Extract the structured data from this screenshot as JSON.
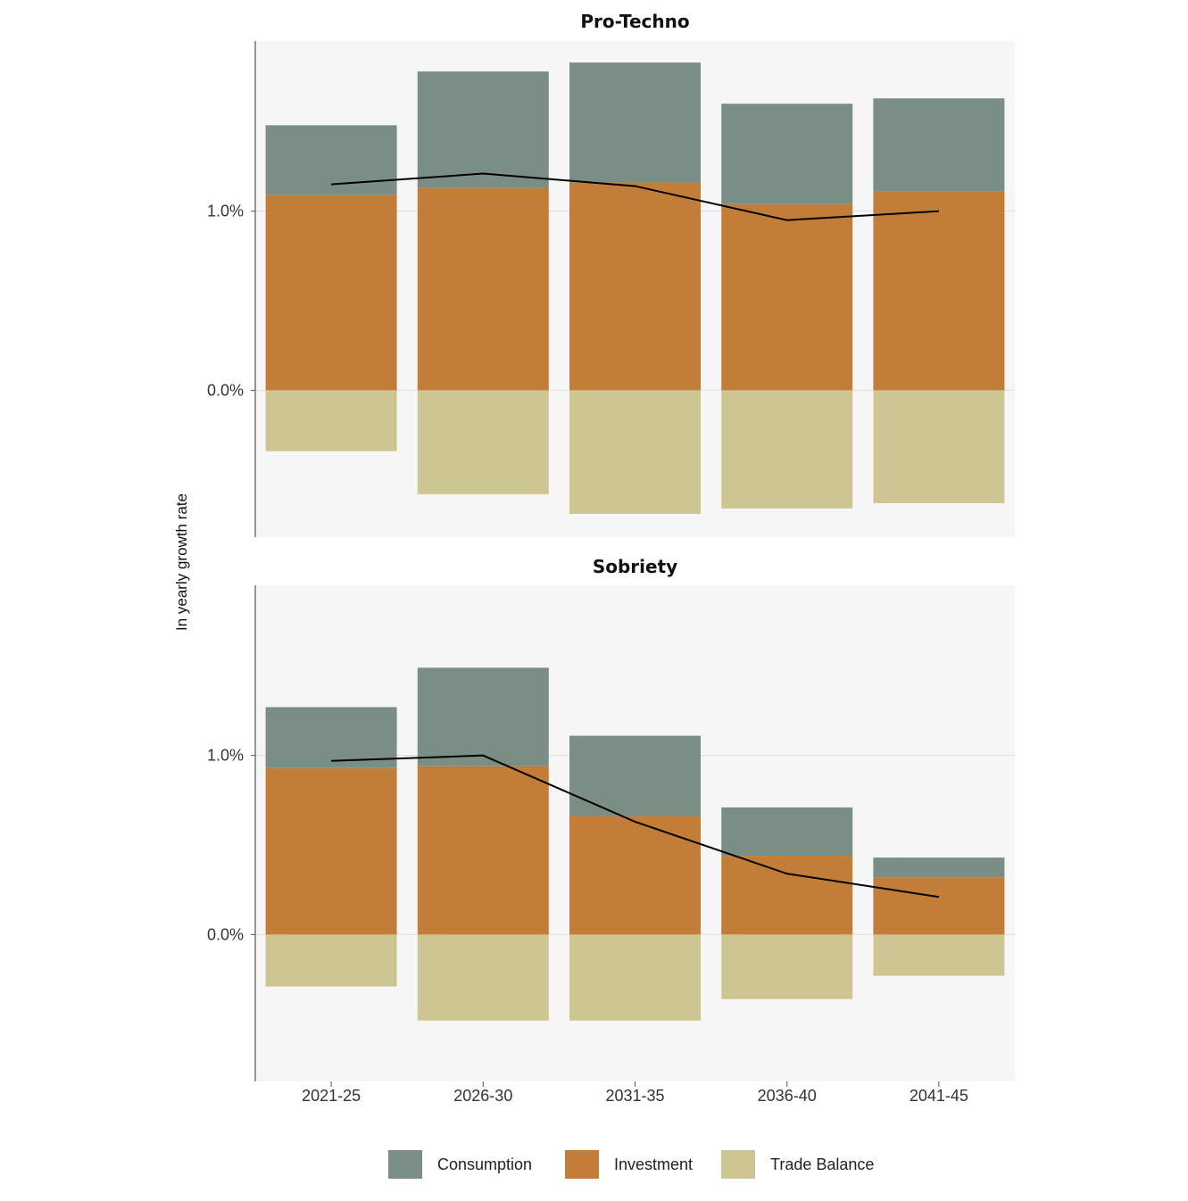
{
  "chart_data": {
    "type": "bar",
    "stacked": true,
    "categories": [
      "2021-25",
      "2026-30",
      "2031-35",
      "2036-40",
      "2041-45"
    ],
    "ylabel": "In yearly growth rate",
    "y_ticks": [
      "0.0%",
      "1.0%"
    ],
    "ylim": [
      -0.0082,
      0.0195
    ],
    "grid": true,
    "legend_position": "bottom",
    "legend": [
      {
        "name": "Consumption",
        "color": "#7a8e85"
      },
      {
        "name": "Investment",
        "color": "#c27d38"
      },
      {
        "name": "Trade Balance",
        "color": "#cdc692"
      }
    ],
    "line_color": "#000000",
    "panels": [
      {
        "title": "Pro-Techno",
        "series": [
          {
            "name": "Investment",
            "values": [
              0.0109,
              0.0113,
              0.0116,
              0.0104,
              0.0111
            ]
          },
          {
            "name": "Consumption",
            "values": [
              0.0039,
              0.0065,
              0.0067,
              0.0056,
              0.0052
            ]
          },
          {
            "name": "Trade Balance",
            "values": [
              -0.0034,
              -0.0058,
              -0.0069,
              -0.0066,
              -0.0063
            ]
          }
        ],
        "line": [
          0.0115,
          0.0121,
          0.0114,
          0.0095,
          0.01
        ]
      },
      {
        "title": "Sobriety",
        "series": [
          {
            "name": "Investment",
            "values": [
              0.0093,
              0.0094,
              0.0066,
              0.0044,
              0.0032
            ]
          },
          {
            "name": "Consumption",
            "values": [
              0.0034,
              0.0055,
              0.0045,
              0.0027,
              0.0011
            ]
          },
          {
            "name": "Trade Balance",
            "values": [
              -0.0029,
              -0.0048,
              -0.0048,
              -0.0036,
              -0.0023
            ]
          }
        ],
        "line": [
          0.0097,
          0.01,
          0.0063,
          0.0034,
          0.0021
        ]
      }
    ]
  }
}
